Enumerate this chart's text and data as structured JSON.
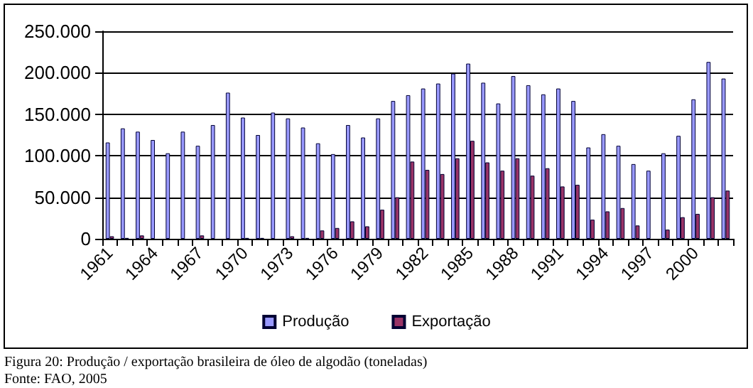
{
  "chart_data": {
    "type": "bar",
    "categories": [
      "1961",
      null,
      null,
      "1964",
      null,
      null,
      "1967",
      null,
      null,
      "1970",
      null,
      null,
      "1973",
      null,
      null,
      "1976",
      null,
      null,
      "1979",
      null,
      null,
      "1982",
      null,
      null,
      "1985",
      null,
      null,
      "1988",
      null,
      null,
      "1991",
      null,
      null,
      "1994",
      null,
      null,
      "1997",
      null,
      null,
      "2000",
      null,
      null
    ],
    "series": [
      {
        "name": "Produção",
        "color": "#9999ff",
        "values": [
          116000,
          133000,
          129000,
          119000,
          103000,
          129000,
          112000,
          137000,
          176000,
          146000,
          125000,
          152000,
          145000,
          134000,
          115000,
          102000,
          137000,
          122000,
          145000,
          166000,
          173000,
          181000,
          187000,
          199000,
          211000,
          188000,
          163000,
          196000,
          185000,
          174000,
          181000,
          166000,
          110000,
          126000,
          112000,
          90000,
          82000,
          103000,
          124000,
          168000,
          213000,
          193000
        ]
      },
      {
        "name": "Exportação",
        "color": "#993366",
        "values": [
          3000,
          1000,
          4000,
          0,
          0,
          0,
          4000,
          0,
          0,
          1000,
          1000,
          0,
          3000,
          1000,
          10000,
          13000,
          21000,
          15000,
          35000,
          50000,
          93000,
          83000,
          78000,
          97000,
          118000,
          92000,
          82000,
          97000,
          76000,
          85000,
          63000,
          65000,
          23000,
          33000,
          37000,
          16000,
          0,
          11000,
          26000,
          30000,
          50000,
          58000
        ]
      }
    ],
    "ylim": [
      0,
      250000
    ],
    "yticks": [
      {
        "value": 0,
        "label": "0"
      },
      {
        "value": 50000,
        "label": "50.000"
      },
      {
        "value": 100000,
        "label": "100.000"
      },
      {
        "value": 150000,
        "label": "150.000"
      },
      {
        "value": 200000,
        "label": "200.000"
      },
      {
        "value": 250000,
        "label": "250.000"
      }
    ],
    "grid": "y",
    "legend": "bottom",
    "annotations": [
      "Figura 20: Produção / exportação brasileira de óleo de algodão (toneladas)",
      "Fonte: FAO, 2005"
    ]
  }
}
